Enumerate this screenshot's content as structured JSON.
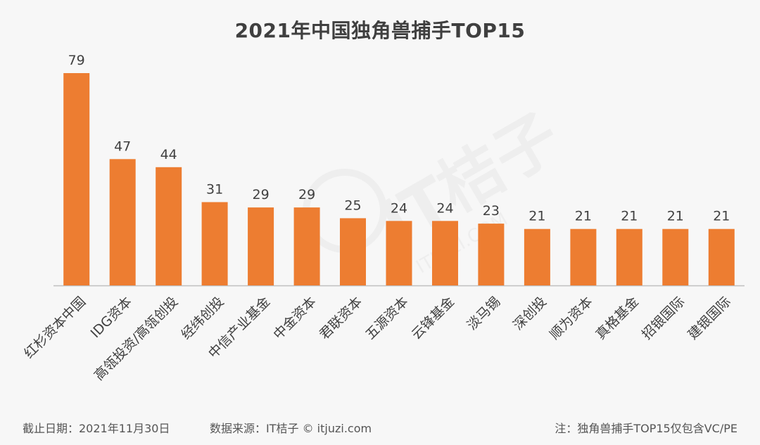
{
  "title": "2021年中国独角兽捕手TOP15",
  "footer": {
    "date": "截止日期：2021年11月30日",
    "source": "数据来源：IT桔子 © itjuzi.com",
    "note": "注：独角兽捕手TOP15仅包含VC/PE"
  },
  "watermark": {
    "text": "IT桔子",
    "url": "ITJUZI.COM"
  },
  "colors": {
    "bar": "#ED7D31",
    "axis": "#bfbfbf",
    "label": "#404040",
    "background": "#f7f7f7"
  },
  "chart_data": {
    "type": "bar",
    "title": "2021年中国独角兽捕手TOP15",
    "categories": [
      "红杉资本中国",
      "IDG资本",
      "高瓴投资/高瓴创投",
      "经纬创投",
      "中信产业基金",
      "中金资本",
      "君联资本",
      "五源资本",
      "云锋基金",
      "淡马锡",
      "深创投",
      "顺为资本",
      "真格基金",
      "招银国际",
      "建银国际"
    ],
    "values": [
      79,
      47,
      44,
      31,
      29,
      29,
      25,
      24,
      24,
      23,
      21,
      21,
      21,
      21,
      21
    ],
    "ylim": [
      0,
      79
    ],
    "xlabel": "",
    "ylabel": "",
    "grid": false,
    "data_labels": true,
    "category_label_rotation": "rotated -45°"
  }
}
